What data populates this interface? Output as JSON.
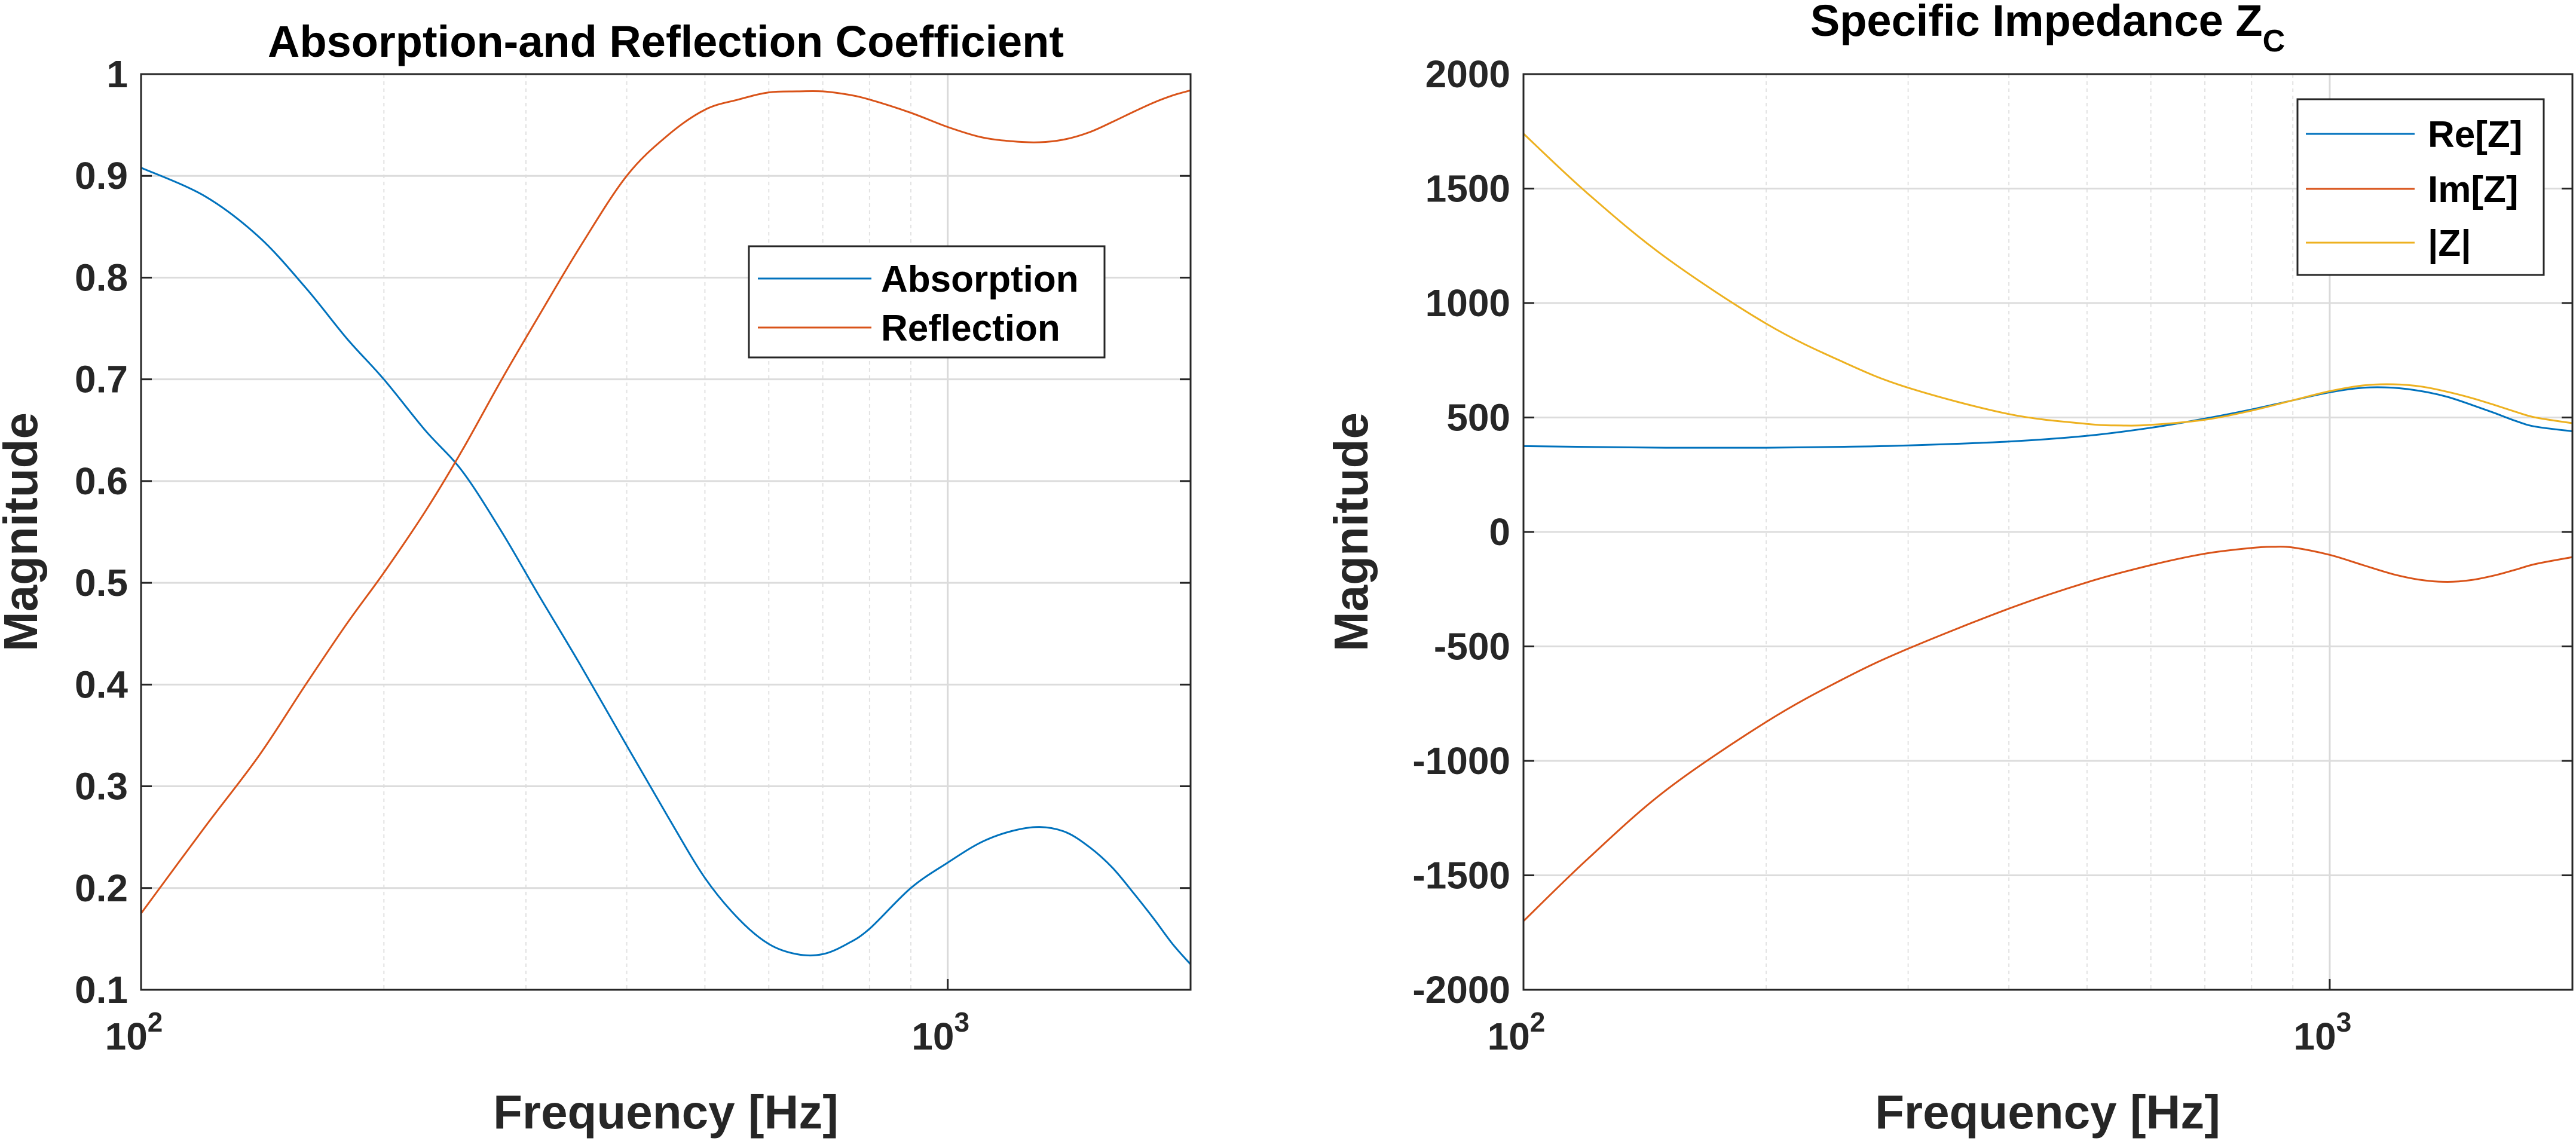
{
  "chart_data": [
    {
      "type": "line",
      "title": "Absorption-and Reflection Coefficient",
      "xlabel": "Frequency [Hz]",
      "ylabel": "Magnitude",
      "xscale": "log",
      "xlim": [
        100,
        2000
      ],
      "ylim": [
        0.1,
        1.0
      ],
      "xtick_labels": [
        {
          "base": "10",
          "exp": "2",
          "value": 100
        },
        {
          "base": "10",
          "exp": "3",
          "value": 1000
        }
      ],
      "yticks": [
        0.1,
        0.2,
        0.3,
        0.4,
        0.5,
        0.6,
        0.7,
        0.8,
        0.9,
        1.0
      ],
      "ytick_labels": [
        "0.1",
        "0.2",
        "0.3",
        "0.4",
        "0.5",
        "0.6",
        "0.7",
        "0.8",
        "0.9",
        "1"
      ],
      "grid": true,
      "legend_position": "upper-right",
      "series": [
        {
          "name": "Absorption",
          "color": "#0072BD",
          "x": [
            100,
            120,
            140,
            160,
            180,
            200,
            225,
            250,
            280,
            310,
            350,
            400,
            450,
            500,
            550,
            600,
            650,
            700,
            750,
            800,
            900,
            1000,
            1100,
            1200,
            1300,
            1400,
            1500,
            1600,
            1700,
            1800,
            1900,
            2000
          ],
          "y": [
            0.908,
            0.88,
            0.84,
            0.79,
            0.74,
            0.7,
            0.65,
            0.61,
            0.55,
            0.49,
            0.42,
            0.34,
            0.27,
            0.21,
            0.17,
            0.145,
            0.135,
            0.135,
            0.145,
            0.16,
            0.2,
            0.225,
            0.245,
            0.256,
            0.26,
            0.255,
            0.24,
            0.22,
            0.195,
            0.17,
            0.145,
            0.125
          ]
        },
        {
          "name": "Reflection",
          "color": "#D95319",
          "x": [
            100,
            120,
            140,
            160,
            180,
            200,
            225,
            250,
            280,
            310,
            350,
            400,
            450,
            500,
            550,
            600,
            650,
            700,
            750,
            800,
            900,
            1000,
            1100,
            1200,
            1300,
            1400,
            1500,
            1600,
            1700,
            1800,
            1900,
            2000
          ],
          "y": [
            0.175,
            0.26,
            0.33,
            0.4,
            0.46,
            0.51,
            0.57,
            0.63,
            0.7,
            0.76,
            0.83,
            0.9,
            0.94,
            0.965,
            0.975,
            0.982,
            0.983,
            0.983,
            0.98,
            0.975,
            0.962,
            0.948,
            0.938,
            0.934,
            0.933,
            0.936,
            0.943,
            0.953,
            0.963,
            0.972,
            0.979,
            0.984
          ]
        }
      ]
    },
    {
      "type": "line",
      "title": "Specific Impedance Z",
      "title_subscript": "C",
      "xlabel": "Frequency [Hz]",
      "ylabel": "Magnitude",
      "xscale": "log",
      "xlim": [
        100,
        2000
      ],
      "ylim": [
        -2000,
        2000
      ],
      "xtick_labels": [
        {
          "base": "10",
          "exp": "2",
          "value": 100
        },
        {
          "base": "10",
          "exp": "3",
          "value": 1000
        }
      ],
      "yticks": [
        -2000,
        -1500,
        -1000,
        -500,
        0,
        500,
        1000,
        1500,
        2000
      ],
      "ytick_labels": [
        "-2000",
        "-1500",
        "-1000",
        "-500",
        "0",
        "500",
        "1000",
        "1500",
        "2000"
      ],
      "grid": true,
      "legend_position": "upper-right",
      "series": [
        {
          "name": "Re[Z]",
          "color": "#0072BD",
          "x": [
            100,
            150,
            200,
            250,
            300,
            400,
            500,
            600,
            700,
            800,
            900,
            1000,
            1100,
            1200,
            1300,
            1400,
            1500,
            1600,
            1700,
            1800,
            2000
          ],
          "y": [
            375,
            368,
            368,
            372,
            378,
            395,
            420,
            455,
            495,
            535,
            575,
            610,
            630,
            630,
            615,
            590,
            555,
            520,
            485,
            460,
            440
          ]
        },
        {
          "name": "Im[Z]",
          "color": "#D95319",
          "x": [
            100,
            120,
            150,
            200,
            250,
            300,
            400,
            500,
            600,
            700,
            800,
            850,
            900,
            1000,
            1100,
            1200,
            1300,
            1400,
            1500,
            1600,
            1700,
            1800,
            2000
          ],
          "y": [
            -1700,
            -1430,
            -1130,
            -830,
            -640,
            -510,
            -335,
            -220,
            -145,
            -95,
            -70,
            -65,
            -68,
            -100,
            -145,
            -185,
            -210,
            -218,
            -210,
            -190,
            -165,
            -140,
            -110
          ]
        },
        {
          "name": "|Z|",
          "color": "#EDB120",
          "x": [
            100,
            120,
            150,
            200,
            250,
            300,
            400,
            500,
            550,
            600,
            700,
            800,
            900,
            1000,
            1100,
            1200,
            1300,
            1400,
            1500,
            1600,
            1700,
            1800,
            2000
          ],
          "y": [
            1740,
            1480,
            1200,
            910,
            740,
            630,
            515,
            472,
            465,
            468,
            490,
            530,
            575,
            615,
            640,
            645,
            635,
            612,
            585,
            555,
            525,
            500,
            475
          ]
        }
      ]
    }
  ]
}
